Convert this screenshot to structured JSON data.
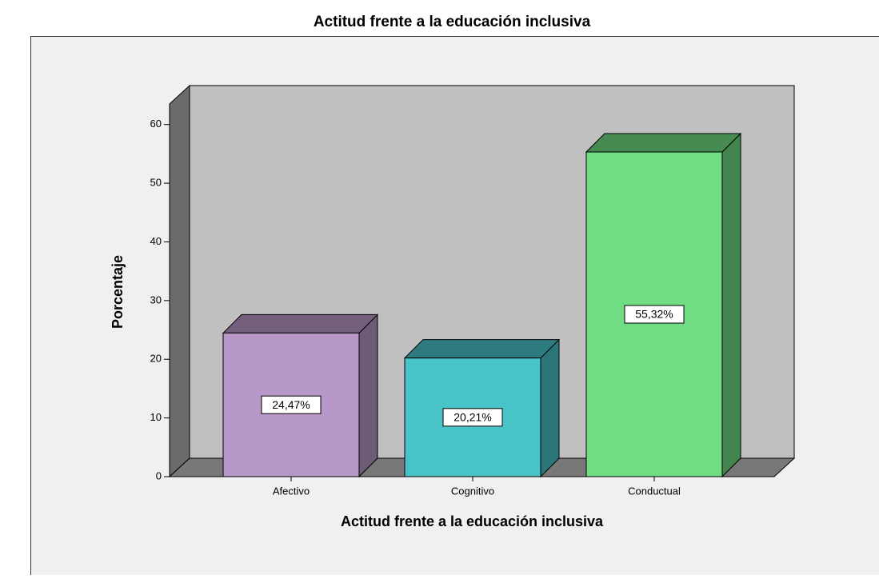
{
  "chart_data": {
    "type": "bar3d",
    "title": "Actitud frente a la educación inclusiva",
    "x_label": "Actitud frente a la educación inclusiva",
    "y_label": "Porcentaje",
    "categories": [
      "Afectivo",
      "Cognitivo",
      "Conductual"
    ],
    "values": [
      24.47,
      20.21,
      55.32
    ],
    "value_labels": [
      "24,47%",
      "20,21%",
      "55,32%"
    ],
    "colors": [
      "#b898c8",
      "#48c4c8",
      "#70dc84"
    ],
    "ylim": [
      0,
      63.5
    ],
    "yticks": [
      0,
      10,
      20,
      30,
      40,
      50,
      60
    ]
  }
}
